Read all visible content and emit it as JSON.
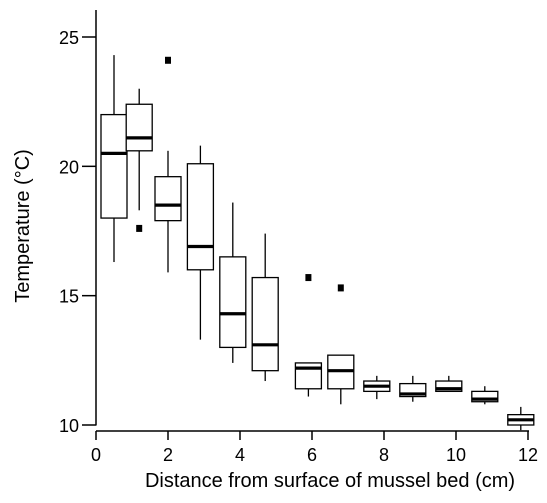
{
  "chart_data": {
    "type": "box",
    "title": "",
    "xlabel": "Distance from surface of mussel bed (cm)",
    "ylabel": "Temperature (°C)",
    "xlim": [
      0,
      12
    ],
    "ylim": [
      10,
      25
    ],
    "xticks": [
      0,
      2,
      4,
      6,
      8,
      10,
      12
    ],
    "yticks": [
      10,
      15,
      20,
      25
    ],
    "grid": false,
    "colors": {
      "box_fill": "#ffffff",
      "stroke": "#000000",
      "median": "#000000",
      "outlier": "#000000"
    },
    "boxes": [
      {
        "x": 0.5,
        "q1": 18.0,
        "median": 20.5,
        "q3": 22.0,
        "whisker_low": 16.3,
        "whisker_high": 24.3,
        "outliers": []
      },
      {
        "x": 1.2,
        "q1": 20.6,
        "median": 21.1,
        "q3": 22.4,
        "whisker_low": 18.3,
        "whisker_high": 23.0,
        "outliers": [
          17.6
        ]
      },
      {
        "x": 2.0,
        "q1": 17.9,
        "median": 18.5,
        "q3": 19.6,
        "whisker_low": 15.9,
        "whisker_high": 20.6,
        "outliers": [
          24.1
        ]
      },
      {
        "x": 2.9,
        "q1": 16.0,
        "median": 16.9,
        "q3": 20.1,
        "whisker_low": 13.3,
        "whisker_high": 20.8,
        "outliers": []
      },
      {
        "x": 3.8,
        "q1": 13.0,
        "median": 14.3,
        "q3": 16.5,
        "whisker_low": 12.4,
        "whisker_high": 18.6,
        "outliers": []
      },
      {
        "x": 4.7,
        "q1": 12.1,
        "median": 13.1,
        "q3": 15.7,
        "whisker_low": 11.7,
        "whisker_high": 17.4,
        "outliers": []
      },
      {
        "x": 5.9,
        "q1": 11.4,
        "median": 12.2,
        "q3": 12.4,
        "whisker_low": 11.1,
        "whisker_high": 12.4,
        "outliers": [
          15.7
        ]
      },
      {
        "x": 6.8,
        "q1": 11.4,
        "median": 12.1,
        "q3": 12.7,
        "whisker_low": 10.8,
        "whisker_high": 12.7,
        "outliers": [
          15.3
        ]
      },
      {
        "x": 7.8,
        "q1": 11.3,
        "median": 11.5,
        "q3": 11.7,
        "whisker_low": 11.0,
        "whisker_high": 11.9,
        "outliers": []
      },
      {
        "x": 8.8,
        "q1": 11.1,
        "median": 11.2,
        "q3": 11.6,
        "whisker_low": 10.9,
        "whisker_high": 11.9,
        "outliers": []
      },
      {
        "x": 9.8,
        "q1": 11.3,
        "median": 11.4,
        "q3": 11.7,
        "whisker_low": 11.3,
        "whisker_high": 11.9,
        "outliers": []
      },
      {
        "x": 10.8,
        "q1": 10.9,
        "median": 11.0,
        "q3": 11.3,
        "whisker_low": 10.8,
        "whisker_high": 11.5,
        "outliers": []
      },
      {
        "x": 11.8,
        "q1": 10.0,
        "median": 10.2,
        "q3": 10.4,
        "whisker_low": 9.8,
        "whisker_high": 10.7,
        "outliers": []
      }
    ]
  }
}
